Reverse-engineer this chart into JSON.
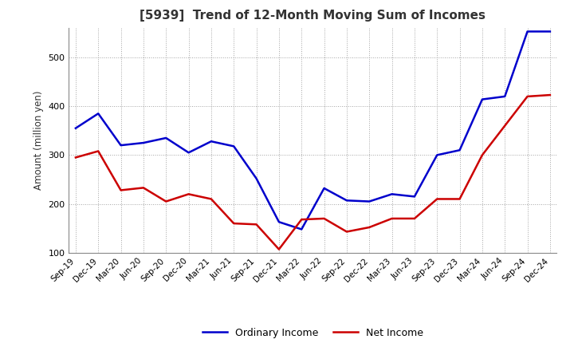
{
  "title": "[5939]  Trend of 12-Month Moving Sum of Incomes",
  "ylabel": "Amount (million yen)",
  "xlim_labels": [
    "Sep-19",
    "Dec-19",
    "Mar-20",
    "Jun-20",
    "Sep-20",
    "Dec-20",
    "Mar-21",
    "Jun-21",
    "Sep-21",
    "Dec-21",
    "Mar-22",
    "Jun-22",
    "Sep-22",
    "Dec-22",
    "Mar-23",
    "Jun-23",
    "Sep-23",
    "Dec-23",
    "Mar-24",
    "Jun-24",
    "Sep-24",
    "Dec-24"
  ],
  "ylim": [
    100,
    560
  ],
  "yticks": [
    100,
    200,
    300,
    400,
    500
  ],
  "ordinary_income": [
    355,
    385,
    320,
    325,
    335,
    305,
    328,
    318,
    252,
    163,
    148,
    232,
    207,
    205,
    220,
    215,
    300,
    310,
    414,
    420,
    553,
    553
  ],
  "net_income": [
    295,
    308,
    228,
    233,
    205,
    220,
    210,
    160,
    158,
    107,
    168,
    170,
    143,
    152,
    170,
    170,
    210,
    210,
    300,
    360,
    420,
    423
  ],
  "ordinary_color": "#0000cc",
  "net_color": "#cc0000",
  "line_width": 1.8,
  "background_color": "#ffffff",
  "grid_color": "#999999",
  "title_color": "#333333",
  "legend_labels": [
    "Ordinary Income",
    "Net Income"
  ]
}
